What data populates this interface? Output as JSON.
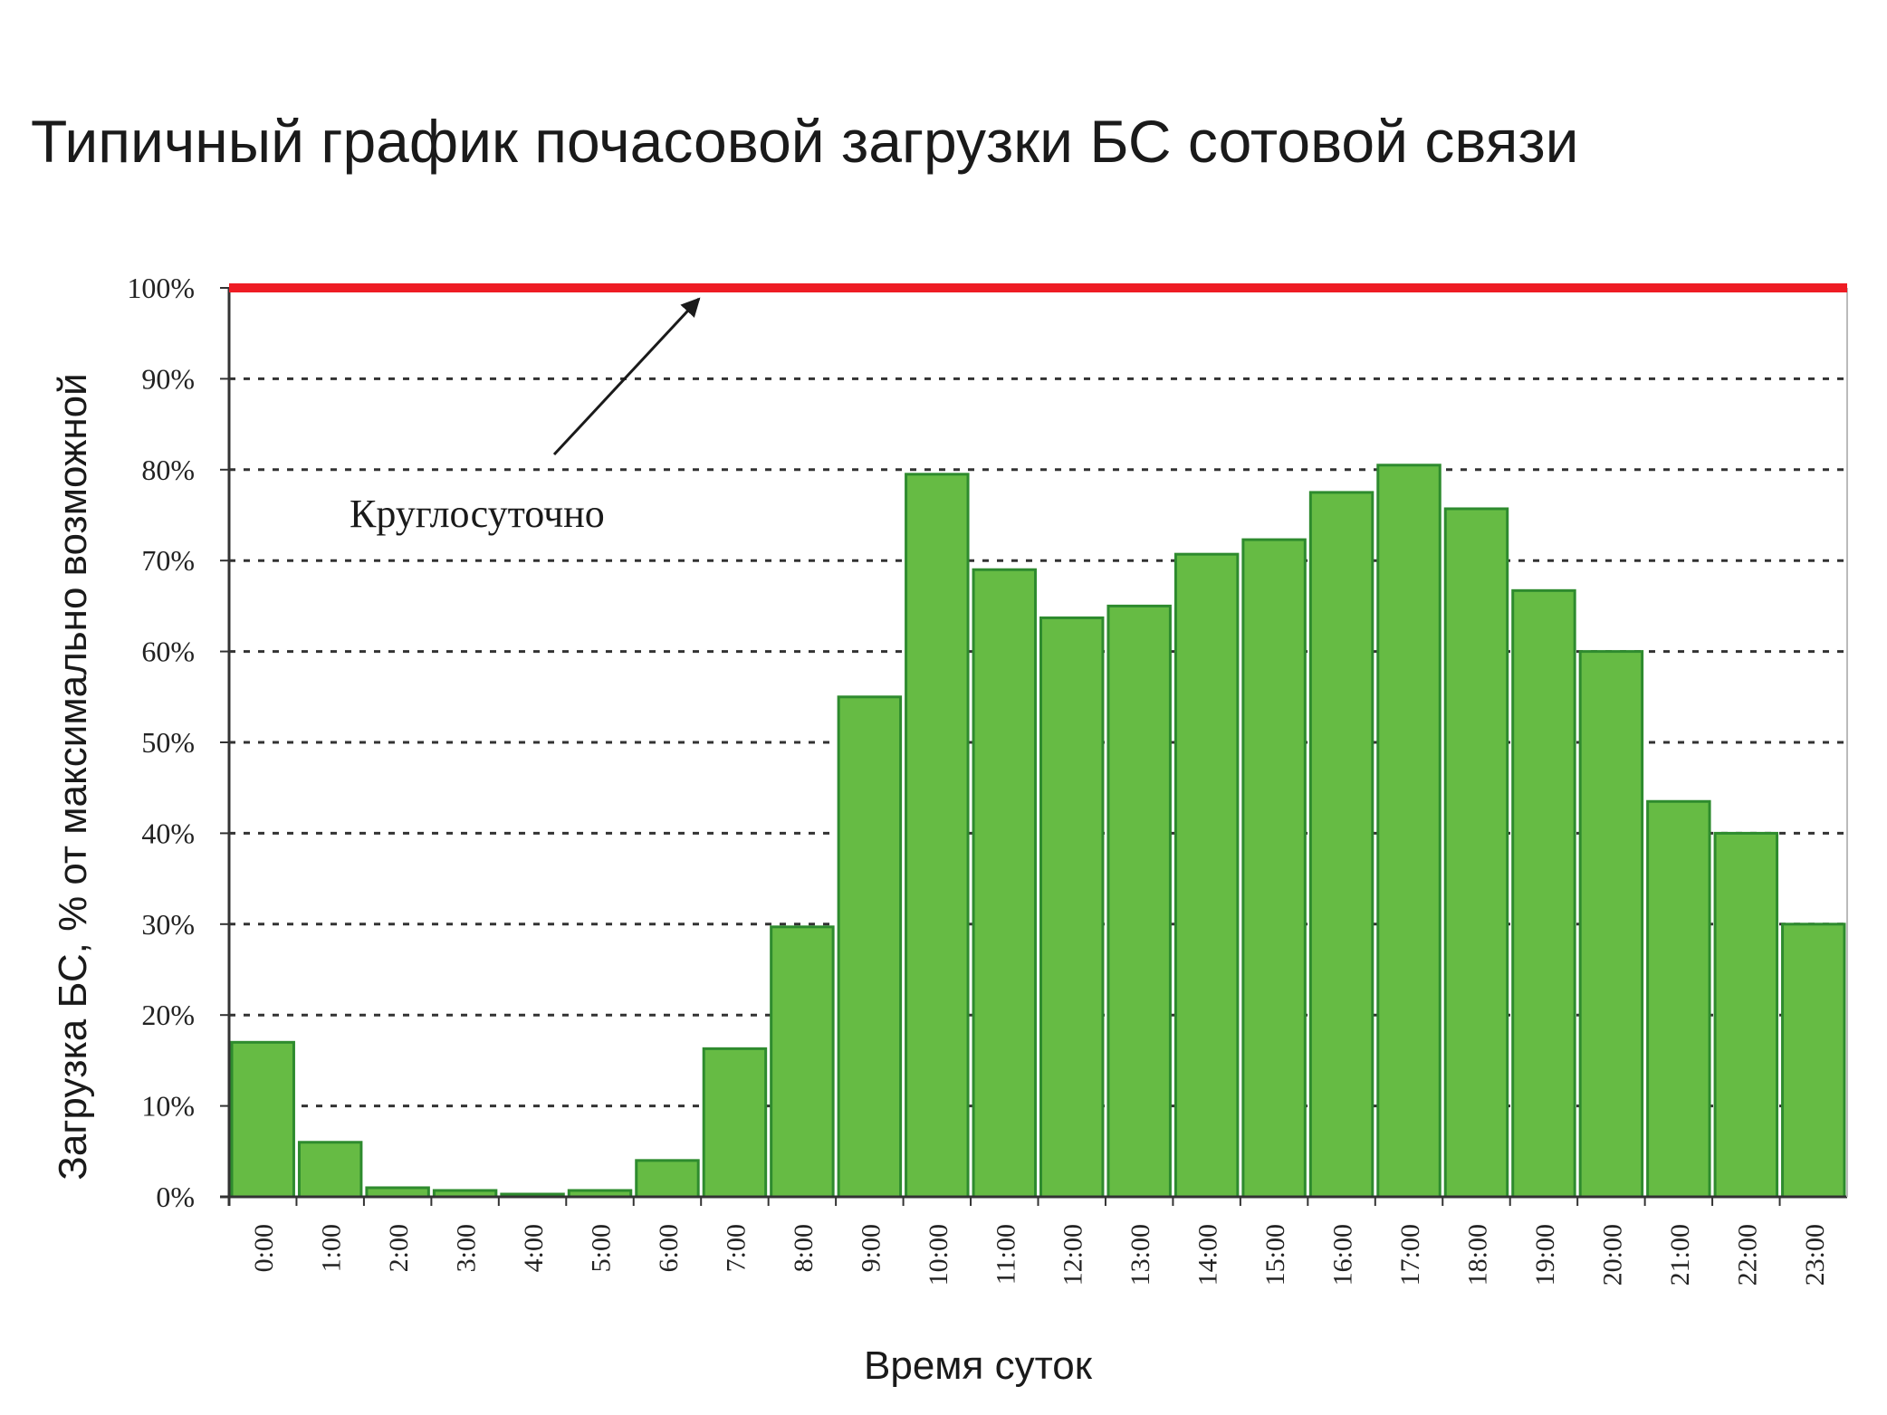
{
  "chart_data": {
    "type": "bar",
    "title": "Типичный график почасовой загрузки БС сотовой связи",
    "xlabel": "Время суток",
    "ylabel": "Загрузка БС, % от максимально возможной",
    "ylim": [
      0,
      100
    ],
    "yticks": [
      "0%",
      "10%",
      "20%",
      "30%",
      "40%",
      "50%",
      "60%",
      "70%",
      "80%",
      "90%",
      "100%"
    ],
    "categories": [
      "0:00",
      "1:00",
      "2:00",
      "3:00",
      "4:00",
      "5:00",
      "6:00",
      "7:00",
      "8:00",
      "9:00",
      "10:00",
      "11:00",
      "12:00",
      "13:00",
      "14:00",
      "15:00",
      "16:00",
      "17:00",
      "18:00",
      "19:00",
      "20:00",
      "21:00",
      "22:00",
      "23:00"
    ],
    "values": [
      17,
      6,
      1,
      0.7,
      0.3,
      0.7,
      4,
      16.3,
      29.7,
      55,
      79.5,
      69,
      63.7,
      65,
      70.7,
      72.3,
      77.5,
      80.5,
      75.7,
      66.7,
      60,
      43.5,
      40,
      30
    ],
    "reference_line": {
      "value": 100,
      "color": "#ee1c24"
    },
    "annotation": {
      "text": "Круглосуточно",
      "points_to": 100
    },
    "grid": true,
    "bar_color": "#66bb44",
    "bar_edge_color": "#2e8b2e"
  }
}
